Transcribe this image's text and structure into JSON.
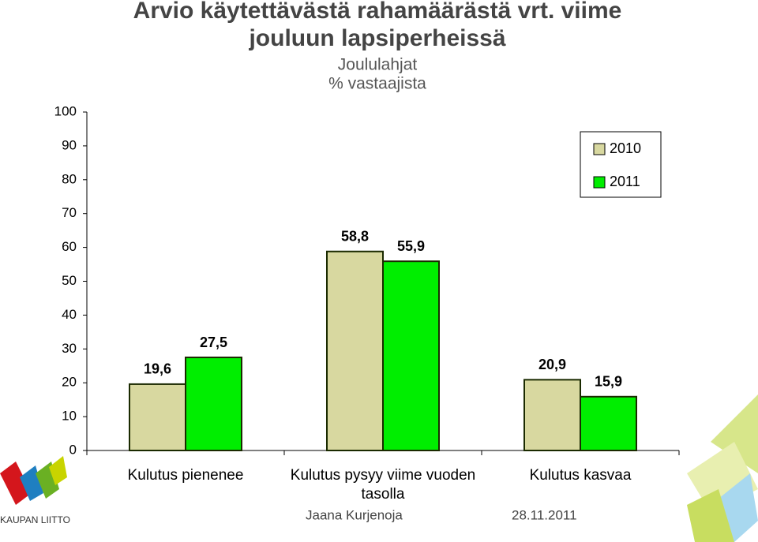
{
  "chart_data": {
    "type": "bar",
    "title": [
      "Arvio käytettävästä rahamäärästä vrt. viime",
      "jouluun lapsiperheissä"
    ],
    "subtitle": "Joululahjat",
    "unit_label": "% vastaajista",
    "categories": [
      "Kulutus pienenee",
      "Kulutus pysyy viime vuoden tasolla",
      "Kulutus kasvaa"
    ],
    "series": [
      {
        "name": "2010",
        "color": "#d8d8a0",
        "values": [
          19.6,
          58.8,
          20.9
        ],
        "value_labels": [
          "19,6",
          "58,8",
          "20,9"
        ]
      },
      {
        "name": "2011",
        "color": "#00ee00",
        "values": [
          27.5,
          55.9,
          15.9
        ],
        "value_labels": [
          "27,5",
          "55,9",
          "15,9"
        ]
      }
    ],
    "ylim": [
      0,
      100
    ],
    "yticks": [
      0,
      10,
      20,
      30,
      40,
      50,
      60,
      70,
      80,
      90,
      100
    ],
    "grid": false,
    "legend": "upper right"
  },
  "footer": {
    "author": "Jaana Kurjenoja",
    "date": "28.11.2011",
    "logo": "KAUPAN LIITTO"
  }
}
